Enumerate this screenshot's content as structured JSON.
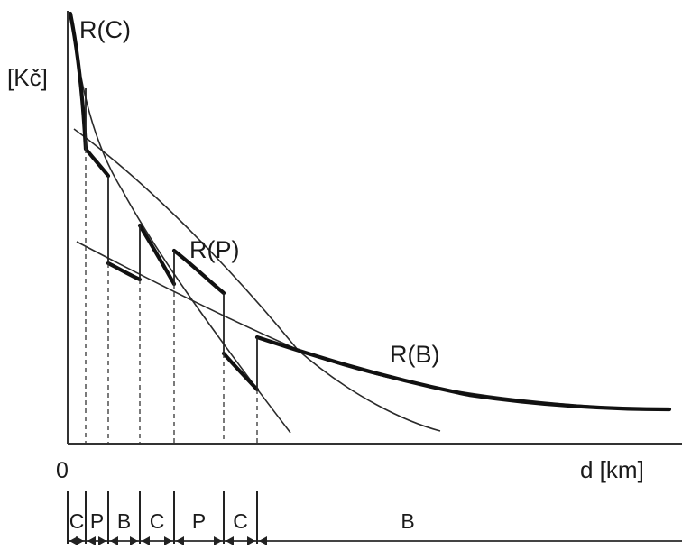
{
  "diagram": {
    "y_axis_label": "[Kč]",
    "x_axis_label": "d [km]",
    "origin_label": "0",
    "curves": [
      {
        "name": "R(C)",
        "label": "R(C)"
      },
      {
        "name": "R(P)",
        "label": "R(P)"
      },
      {
        "name": "R(B)",
        "label": "R(B)"
      }
    ],
    "segments": [
      {
        "label": "C"
      },
      {
        "label": "P"
      },
      {
        "label": "B"
      },
      {
        "label": "C"
      },
      {
        "label": "P"
      },
      {
        "label": "C"
      },
      {
        "label": "B"
      }
    ]
  },
  "colors": {
    "ink": "#1a1a1a",
    "background": "#ffffff"
  }
}
